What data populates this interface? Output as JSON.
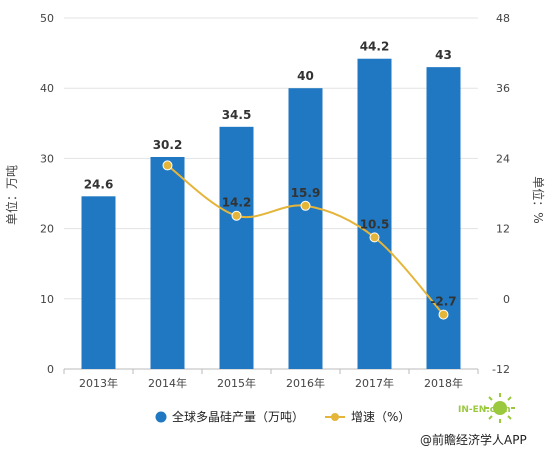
{
  "chart_data": {
    "type": "bar",
    "categories": [
      "2013年",
      "2014年",
      "2015年",
      "2016年",
      "2017年",
      "2018年"
    ],
    "series": [
      {
        "name": "全球多晶硅产量（万吨）",
        "type": "bar",
        "axis": "left",
        "values": [
          24.6,
          30.2,
          34.5,
          40,
          44.2,
          43
        ],
        "labels": [
          "24.6",
          "30.2",
          "34.5",
          "40",
          "44.2",
          "43"
        ],
        "color": "#1f78c1"
      },
      {
        "name": "增速（%）",
        "type": "line",
        "axis": "right",
        "values": [
          null,
          22.8,
          14.2,
          15.9,
          10.5,
          -2.7
        ],
        "labels": [
          "",
          "",
          "14.2",
          "15.9",
          "10.5",
          "-2.7"
        ],
        "color": "#e5b53a"
      }
    ],
    "ylabel_left": "单位：万吨",
    "ylabel_right": "单位：%",
    "ylim_left": [
      0,
      50
    ],
    "yticks_left": [
      "0",
      "10",
      "20",
      "30",
      "40",
      "50"
    ],
    "ylim_right": [
      -12,
      48
    ],
    "yticks_right": [
      "-12",
      "0",
      "12",
      "24",
      "36",
      "48"
    ],
    "grid": true,
    "legend": "bottom"
  },
  "credit": "@前瞻经济学人APP",
  "watermark": "IN-EN.com"
}
